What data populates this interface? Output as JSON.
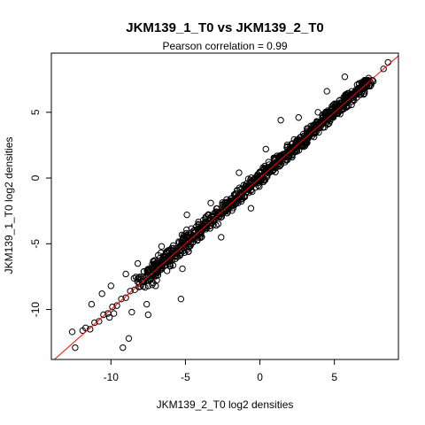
{
  "chart_data": {
    "type": "scatter",
    "title": "JKM139_1_T0 vs JKM139_2_T0",
    "subtitle": "Pearson correlation =  0.99",
    "xlabel": "JKM139_2_T0 log2 densities",
    "ylabel": "JKM139_1_T0 log2 densities",
    "xlim": [
      -14,
      9.3
    ],
    "ylim": [
      -13.8,
      9.5
    ],
    "x_ticks": [
      -10,
      -5,
      0,
      5
    ],
    "y_ticks": [
      -10,
      -5,
      0,
      5
    ],
    "x_tick_labels": [
      "-10",
      "-5",
      "0",
      "5"
    ],
    "y_tick_labels": [
      "-10",
      "-5",
      "0",
      "5"
    ],
    "grid": false,
    "legend": "none",
    "point_color": "#000000",
    "fit_line": {
      "slope": 1,
      "intercept": 0,
      "color": "#ff0000"
    },
    "series": [
      {
        "values_note": "",
        "x": [
          8.6,
          8.3,
          7.3,
          7.0,
          6.8,
          6.4,
          6.0,
          5.6,
          5.2,
          4.9,
          4.6,
          4.2,
          3.9,
          3.6,
          3.3,
          3.0,
          2.7,
          2.4,
          2.1,
          1.8,
          1.5,
          1.2,
          0.9,
          0.6,
          0.3,
          0.0,
          -0.3,
          -0.6,
          -0.9,
          -1.2,
          -1.5,
          -1.8,
          -2.1,
          -2.4,
          -2.7,
          -3.0,
          -3.3,
          -3.6,
          -3.9,
          -4.2,
          -4.5,
          -4.8,
          -5.1,
          -5.4,
          -5.7,
          -6.0,
          -6.3,
          -6.6,
          -6.9,
          -7.2,
          -7.5,
          -7.8,
          -8.1,
          -8.4,
          -8.7,
          -9.0,
          -9.3,
          -9.6,
          -9.9,
          -10.2,
          -10.5,
          -10.8,
          -11.1,
          -11.4,
          -11.9,
          -12.4,
          -12.6,
          -9.8,
          -10.6,
          -11.3,
          -11.7,
          -9.2,
          -10.0,
          -8.8,
          -10.1,
          -7.5,
          -9.0,
          -7.0,
          -6.6,
          -8.2,
          -5.3,
          -6.0,
          -4.8,
          -3.8,
          -4.9,
          -5.2,
          -3.3,
          -2.6,
          -2.8,
          -1.4,
          -0.6,
          0.4,
          1.4,
          2.6,
          3.9,
          4.5,
          6.1,
          5.7,
          -7.6,
          -8.6
        ],
        "y": [
          8.8,
          8.3,
          7.6,
          7.1,
          6.7,
          6.3,
          6.1,
          5.5,
          5.3,
          4.8,
          4.7,
          4.1,
          4.0,
          3.5,
          3.4,
          2.9,
          2.8,
          2.3,
          2.2,
          1.7,
          1.6,
          1.1,
          1.0,
          0.5,
          0.4,
          -0.1,
          -0.2,
          -0.7,
          -0.8,
          -1.3,
          -1.4,
          -1.9,
          -2.0,
          -2.5,
          -2.6,
          -3.1,
          -3.2,
          -3.7,
          -3.8,
          -4.3,
          -4.4,
          -4.9,
          -5.0,
          -5.5,
          -5.6,
          -6.1,
          -6.2,
          -6.7,
          -6.8,
          -7.3,
          -7.4,
          -7.9,
          -8.0,
          -8.5,
          -8.6,
          -9.1,
          -9.2,
          -9.7,
          -9.8,
          -10.3,
          -10.4,
          -10.9,
          -11.0,
          -11.5,
          -11.6,
          -12.9,
          -11.7,
          -10.3,
          -8.8,
          -9.6,
          -11.4,
          -12.9,
          -8.2,
          -12.2,
          -10.6,
          -10.4,
          -7.3,
          -8.2,
          -5.2,
          -6.5,
          -9.2,
          -6.7,
          -5.6,
          -3.2,
          -2.8,
          -6.9,
          -1.9,
          -4.5,
          -3.5,
          0.4,
          -2.3,
          2.2,
          4.4,
          4.6,
          5.0,
          6.6,
          6.3,
          7.7,
          -9.6,
          -10.2
        ]
      }
    ]
  }
}
